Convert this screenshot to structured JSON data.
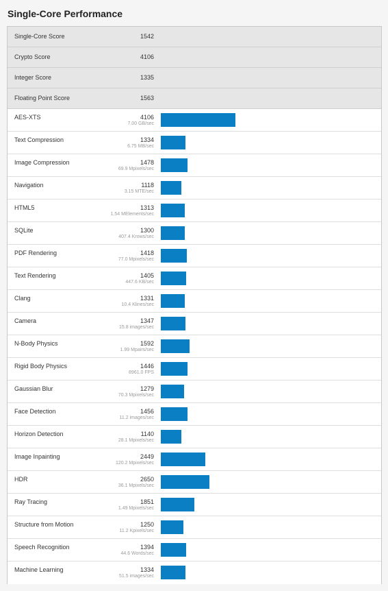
{
  "page": {
    "title": "Single-Core Performance"
  },
  "summary": [
    {
      "label": "Single-Core Score",
      "score": "1542"
    },
    {
      "label": "Crypto Score",
      "score": "4106"
    },
    {
      "label": "Integer Score",
      "score": "1335"
    },
    {
      "label": "Floating Point Score",
      "score": "1563"
    }
  ],
  "benchmarks": [
    {
      "name": "AES-XTS",
      "score": "4106",
      "rate": "7.00 GB/sec"
    },
    {
      "name": "Text Compression",
      "score": "1334",
      "rate": "6.75 MB/sec"
    },
    {
      "name": "Image Compression",
      "score": "1478",
      "rate": "69.9 Mpixels/sec"
    },
    {
      "name": "Navigation",
      "score": "1118",
      "rate": "3.15 MTE/sec"
    },
    {
      "name": "HTML5",
      "score": "1313",
      "rate": "1.54 MElements/sec"
    },
    {
      "name": "SQLite",
      "score": "1300",
      "rate": "407.4 Krows/sec"
    },
    {
      "name": "PDF Rendering",
      "score": "1418",
      "rate": "77.0 Mpixels/sec"
    },
    {
      "name": "Text Rendering",
      "score": "1405",
      "rate": "447.6 KB/sec"
    },
    {
      "name": "Clang",
      "score": "1331",
      "rate": "10.4 Klines/sec"
    },
    {
      "name": "Camera",
      "score": "1347",
      "rate": "15.8 images/sec"
    },
    {
      "name": "N-Body Physics",
      "score": "1592",
      "rate": "1.99 Mpairs/sec"
    },
    {
      "name": "Rigid Body Physics",
      "score": "1446",
      "rate": "8961.0 FPS"
    },
    {
      "name": "Gaussian Blur",
      "score": "1279",
      "rate": "70.3 Mpixels/sec"
    },
    {
      "name": "Face Detection",
      "score": "1456",
      "rate": "11.2 images/sec"
    },
    {
      "name": "Horizon Detection",
      "score": "1140",
      "rate": "28.1 Mpixels/sec"
    },
    {
      "name": "Image Inpainting",
      "score": "2449",
      "rate": "120.2 Mpixels/sec"
    },
    {
      "name": "HDR",
      "score": "2650",
      "rate": "36.1 Mpixels/sec"
    },
    {
      "name": "Ray Tracing",
      "score": "1851",
      "rate": "1.49 Mpixels/sec"
    },
    {
      "name": "Structure from Motion",
      "score": "1250",
      "rate": "11.2 Kpixels/sec"
    },
    {
      "name": "Speech Recognition",
      "score": "1394",
      "rate": "44.6 Words/sec"
    },
    {
      "name": "Machine Learning",
      "score": "1334",
      "rate": "51.5 images/sec"
    }
  ],
  "colors": {
    "bar": "#0b7fc4",
    "summary_background": "#e6e6e6",
    "rate_text": "#9a9a9a"
  }
}
